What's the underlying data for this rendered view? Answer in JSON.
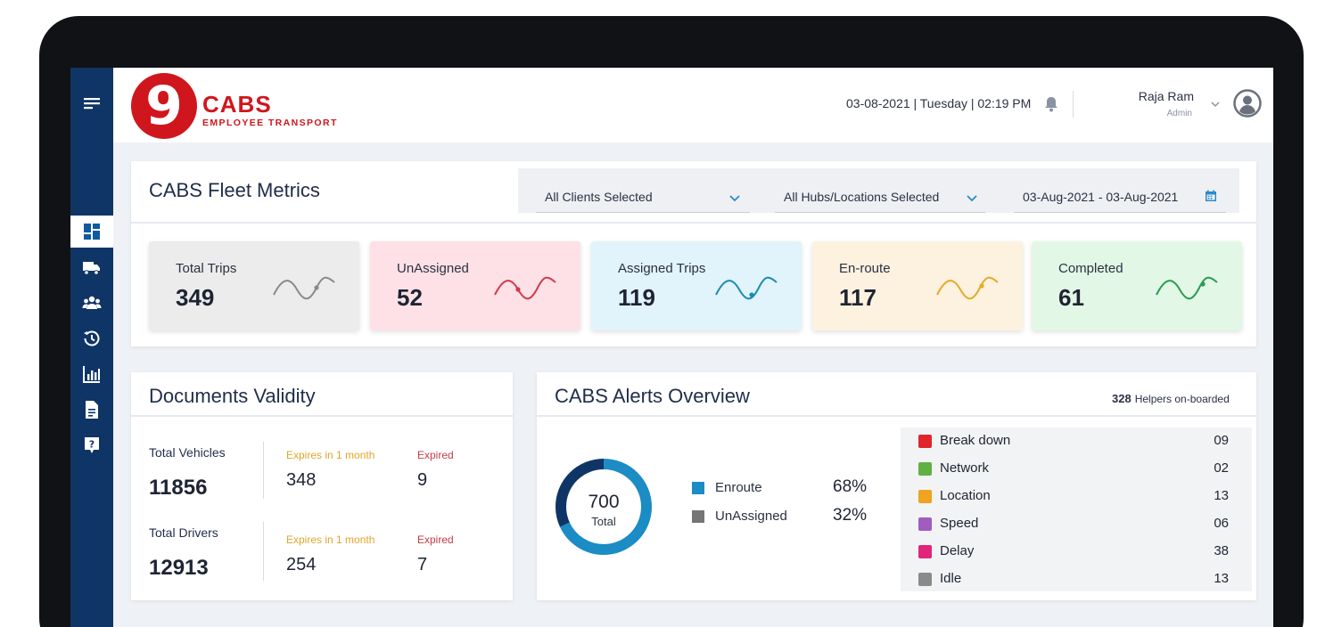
{
  "app": {
    "logo_number": "9",
    "logo_name": "CABS",
    "logo_tagline": "EMPLOYEE TRANSPORT",
    "datetime": "03-08-2021 | Tuesday | 02:19 PM",
    "user_name": "Raja Ram",
    "user_role": "Admin",
    "brand_color": "#d0161d",
    "sidebar_color": "#0f3566"
  },
  "sidebar": {
    "items": [
      {
        "icon": "menu-icon"
      },
      {
        "icon": "dashboard-icon",
        "active": true
      },
      {
        "icon": "truck-icon"
      },
      {
        "icon": "users-icon"
      },
      {
        "icon": "history-icon"
      },
      {
        "icon": "report-chart-icon"
      },
      {
        "icon": "document-icon"
      },
      {
        "icon": "help-icon"
      }
    ]
  },
  "fleet": {
    "title": "CABS Fleet Metrics",
    "filters": {
      "clients": "All Clients Selected",
      "hubs": "All Hubs/Locations Selected",
      "date_range": "03-Aug-2021 - 03-Aug-2021"
    },
    "metrics": [
      {
        "label": "Total Trips",
        "value": "349",
        "bg": "#ececec",
        "wave": "#8a8a8a"
      },
      {
        "label": "UnAssigned",
        "value": "52",
        "bg": "#fde1e6",
        "wave": "#d23a4a"
      },
      {
        "label": "Assigned Trips",
        "value": "119",
        "bg": "#e1f3fb",
        "wave": "#1b8cae"
      },
      {
        "label": "En-route",
        "value": "117",
        "bg": "#fdf1df",
        "wave": "#e2ac26"
      },
      {
        "label": "Completed",
        "value": "61",
        "bg": "#e2f7e6",
        "wave": "#2c9a54"
      }
    ]
  },
  "documents": {
    "title": "Documents Validity",
    "vehicles": {
      "label": "Total Vehicles",
      "total": "11856",
      "expires_label": "Expires in 1 month",
      "expires": "348",
      "expired_label": "Expired",
      "expired": "9"
    },
    "drivers": {
      "label": "Total Drivers",
      "total": "12913",
      "expires_label": "Expires in 1 month",
      "expires": "254",
      "expired_label": "Expired",
      "expired": "7"
    },
    "expires_color": "#e2a52a",
    "expired_color": "#c43b47"
  },
  "alerts": {
    "title": "CABS Alerts Overview",
    "helpers_count": "328",
    "helpers_label": "Helpers on-boarded",
    "donut_total": "700",
    "donut_label": "Total",
    "legend": [
      {
        "name": "Enroute",
        "pct": "68%",
        "color": "#1b8cc4",
        "fraction": 0.68
      },
      {
        "name": "UnAssigned",
        "pct": "32%",
        "color": "#757575",
        "fraction": 0.32
      }
    ],
    "list": [
      {
        "name": "Break down",
        "count": "09",
        "icon": "breakdown-icon",
        "color": "#e0252c"
      },
      {
        "name": "Network",
        "count": "02",
        "icon": "network-icon",
        "color": "#5fb144"
      },
      {
        "name": "Location",
        "count": "13",
        "icon": "location-pin-icon",
        "color": "#f0a31f"
      },
      {
        "name": "Speed",
        "count": "06",
        "icon": "speed-icon",
        "color": "#a05cc0"
      },
      {
        "name": "Delay",
        "count": "38",
        "icon": "delay-icon",
        "color": "#e0257b"
      },
      {
        "name": "Idle",
        "count": "13",
        "icon": "idle-icon",
        "color": "#8a8a8a"
      }
    ]
  }
}
